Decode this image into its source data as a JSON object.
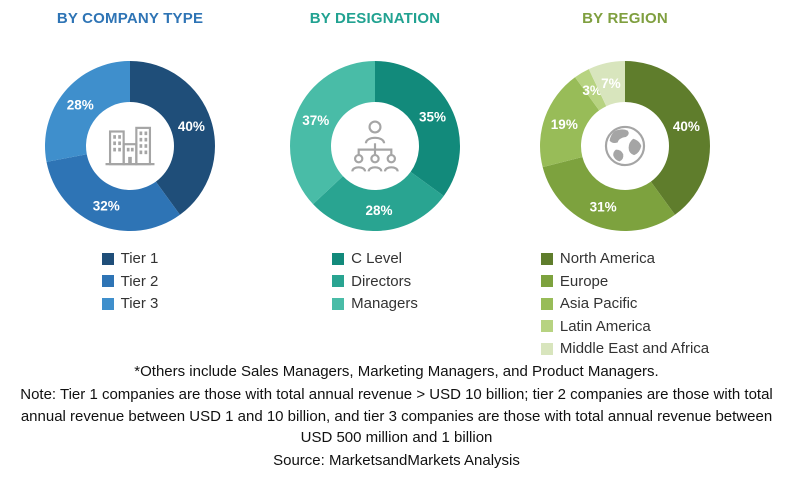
{
  "chart_data": [
    {
      "type": "pie",
      "subtype": "donut",
      "title": "BY COMPANY TYPE",
      "title_color": "#2E74B5",
      "unit": "%",
      "start_angle_deg": 0,
      "direction": "clockwise",
      "center_icon": "buildings-icon",
      "legend_position": "bottom",
      "categories": [
        "Tier 1",
        "Tier 2",
        "Tier 3"
      ],
      "values": [
        40,
        32,
        28
      ],
      "colors": [
        "#1F4E79",
        "#2E74B5",
        "#3F8FCC"
      ]
    },
    {
      "type": "pie",
      "subtype": "donut",
      "title": "BY DESIGNATION",
      "title_color": "#21A291",
      "unit": "%",
      "start_angle_deg": 0,
      "direction": "clockwise",
      "center_icon": "org-chart-person-icon",
      "legend_position": "bottom",
      "categories": [
        "C Level",
        "Directors",
        "Managers"
      ],
      "values": [
        35,
        28,
        37
      ],
      "colors": [
        "#128A7B",
        "#29A491",
        "#49BCA7"
      ]
    },
    {
      "type": "pie",
      "subtype": "donut",
      "title": "BY REGION",
      "title_color": "#7F9F3F",
      "unit": "%",
      "start_angle_deg": 0,
      "direction": "clockwise",
      "center_icon": "globe-icon",
      "legend_position": "bottom",
      "categories": [
        "North America",
        "Europe",
        "Asia Pacific",
        "Latin America",
        "Middle East and Africa"
      ],
      "values": [
        40,
        31,
        19,
        3,
        7
      ],
      "colors": [
        "#5F7D2C",
        "#7DA23E",
        "#98BC58",
        "#B7D381",
        "#D8E5BD"
      ]
    }
  ],
  "footnotes": {
    "others_note": "*Others include Sales Managers, Marketing Managers, and Product Managers.",
    "tier_note": "Note: Tier 1 companies are those with total annual revenue > USD 10 billion; tier 2 companies are those with total annual revenue between USD 1 and 10 billion, and tier 3 companies are those with total annual revenue between USD 500 million and 1 billion",
    "source": "Source: MarketsandMarkets Analysis"
  }
}
